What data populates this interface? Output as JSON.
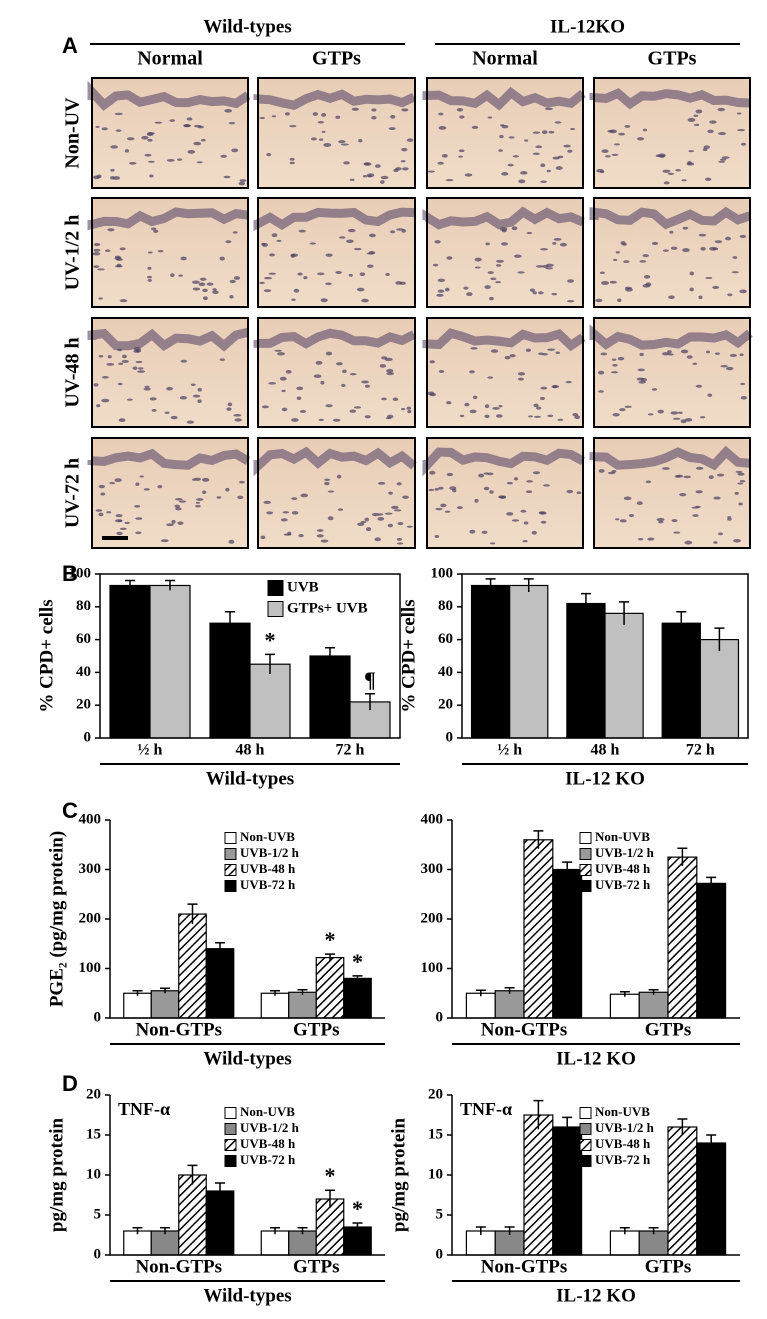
{
  "panel_labels": [
    "A",
    "B",
    "C",
    "D"
  ],
  "panel_a": {
    "groups": [
      "Wild-types",
      "IL-12KO"
    ],
    "columns": [
      "Normal",
      "GTPs",
      "Normal",
      "GTPs"
    ],
    "rows": [
      "Non-UV",
      "UV-1/2 h",
      "UV-48 h",
      "UV-72 h"
    ]
  },
  "chart_data": [
    {
      "type": "bar",
      "ylabel": "% CPD+ cells",
      "categories": [
        "½ h",
        "48 h",
        "72 h"
      ],
      "group_label": "Wild-types",
      "series": [
        {
          "name": "UVB",
          "color": "#000000",
          "values": [
            93,
            70,
            50
          ],
          "errors": [
            3,
            7,
            5
          ]
        },
        {
          "name": "GTPs+ UVB",
          "color": "#c0c0c0",
          "values": [
            93,
            45,
            22
          ],
          "errors": [
            3,
            6,
            5
          ]
        }
      ],
      "ylim": [
        0,
        100
      ],
      "yticks": [
        0,
        20,
        40,
        60,
        80,
        100
      ],
      "frame": true,
      "legend": "upper right",
      "annotations": [
        "*",
        "¶"
      ]
    },
    {
      "type": "bar",
      "ylabel": "% CPD+ cells",
      "categories": [
        "½ h",
        "48 h",
        "72 h"
      ],
      "group_label": "IL-12 KO",
      "series": [
        {
          "color": "#000000",
          "values": [
            93,
            82,
            70
          ],
          "errors": [
            4,
            6,
            7
          ]
        },
        {
          "color": "#c0c0c0",
          "values": [
            93,
            76,
            60
          ],
          "errors": [
            4,
            7,
            7
          ]
        }
      ],
      "ylim": [
        0,
        100
      ],
      "yticks": [
        0,
        20,
        40,
        60,
        80,
        100
      ],
      "frame": true
    },
    {
      "type": "bar",
      "ylabel": "PGE₂ (pg/mg protein)",
      "categories": [
        "Non-GTPs",
        "GTPs"
      ],
      "group_label": "Wild-types",
      "series": [
        {
          "name": "Non-UVB",
          "color": "#ffffff",
          "values": [
            50,
            50
          ],
          "errors": [
            5,
            5
          ]
        },
        {
          "name": "UVB-1/2 h",
          "color": "#999999",
          "values": [
            55,
            52
          ],
          "errors": [
            5,
            5
          ]
        },
        {
          "name": "UVB-48 h",
          "color": "#ffffff",
          "hatch": true,
          "values": [
            210,
            122
          ],
          "errors": [
            20,
            7
          ]
        },
        {
          "name": "UVB-72 h",
          "color": "#000000",
          "values": [
            140,
            80
          ],
          "errors": [
            12,
            5
          ]
        }
      ],
      "ylim": [
        0,
        400
      ],
      "yticks": [
        0,
        100,
        200,
        300,
        400
      ],
      "legend": "upper right",
      "annotations": [
        "*",
        "*"
      ]
    },
    {
      "type": "bar",
      "categories": [
        "Non-GTPs",
        "GTPs"
      ],
      "group_label": "IL-12 KO",
      "series": [
        {
          "name": "Non-UVB",
          "color": "#ffffff",
          "values": [
            50,
            48
          ],
          "errors": [
            6,
            5
          ]
        },
        {
          "name": "UVB-1/2 h",
          "color": "#999999",
          "values": [
            55,
            52
          ],
          "errors": [
            6,
            5
          ]
        },
        {
          "name": "UVB-48 h",
          "color": "#ffffff",
          "hatch": true,
          "values": [
            360,
            325
          ],
          "errors": [
            18,
            18
          ]
        },
        {
          "name": "UVB-72 h",
          "color": "#000000",
          "values": [
            300,
            272
          ],
          "errors": [
            15,
            12
          ]
        }
      ],
      "ylim": [
        0,
        400
      ],
      "yticks": [
        0,
        100,
        200,
        300,
        400
      ],
      "legend": "upper right"
    },
    {
      "type": "bar",
      "ylabel": "pg/mg protein",
      "inset_label": "TNF-α",
      "categories": [
        "Non-GTPs",
        "GTPs"
      ],
      "group_label": "Wild-types",
      "series": [
        {
          "name": "Non-UVB",
          "color": "#ffffff",
          "values": [
            3,
            3
          ],
          "errors": [
            0.4,
            0.4
          ]
        },
        {
          "name": "UVB-1/2 h",
          "color": "#888888",
          "values": [
            3,
            3
          ],
          "errors": [
            0.4,
            0.4
          ]
        },
        {
          "name": "UVB-48 h",
          "color": "#ffffff",
          "hatch": true,
          "values": [
            10,
            7
          ],
          "errors": [
            1.2,
            1.1
          ]
        },
        {
          "name": "UVB-72 h",
          "color": "#000000",
          "values": [
            8,
            3.5
          ],
          "errors": [
            1,
            0.5
          ]
        }
      ],
      "ylim": [
        0,
        20
      ],
      "yticks": [
        0,
        5,
        10,
        15,
        20
      ],
      "legend": "upper right",
      "annotations": [
        "*",
        "*"
      ]
    },
    {
      "type": "bar",
      "ylabel": "pg/mg protein",
      "inset_label": "TNF-α",
      "categories": [
        "Non-GTPs",
        "GTPs"
      ],
      "group_label": "IL-12 KO",
      "series": [
        {
          "name": "Non-UVB",
          "color": "#ffffff",
          "values": [
            3,
            3
          ],
          "errors": [
            0.5,
            0.4
          ]
        },
        {
          "name": "UVB-1/2 h",
          "color": "#888888",
          "values": [
            3,
            3
          ],
          "errors": [
            0.5,
            0.4
          ]
        },
        {
          "name": "UVB-48 h",
          "color": "#ffffff",
          "hatch": true,
          "values": [
            17.5,
            16
          ],
          "errors": [
            1.8,
            1
          ]
        },
        {
          "name": "UVB-72 h",
          "color": "#000000",
          "values": [
            16,
            14
          ],
          "errors": [
            1.2,
            1
          ]
        }
      ],
      "ylim": [
        0,
        20
      ],
      "yticks": [
        0,
        5,
        10,
        15,
        20
      ],
      "legend": "upper right"
    }
  ]
}
